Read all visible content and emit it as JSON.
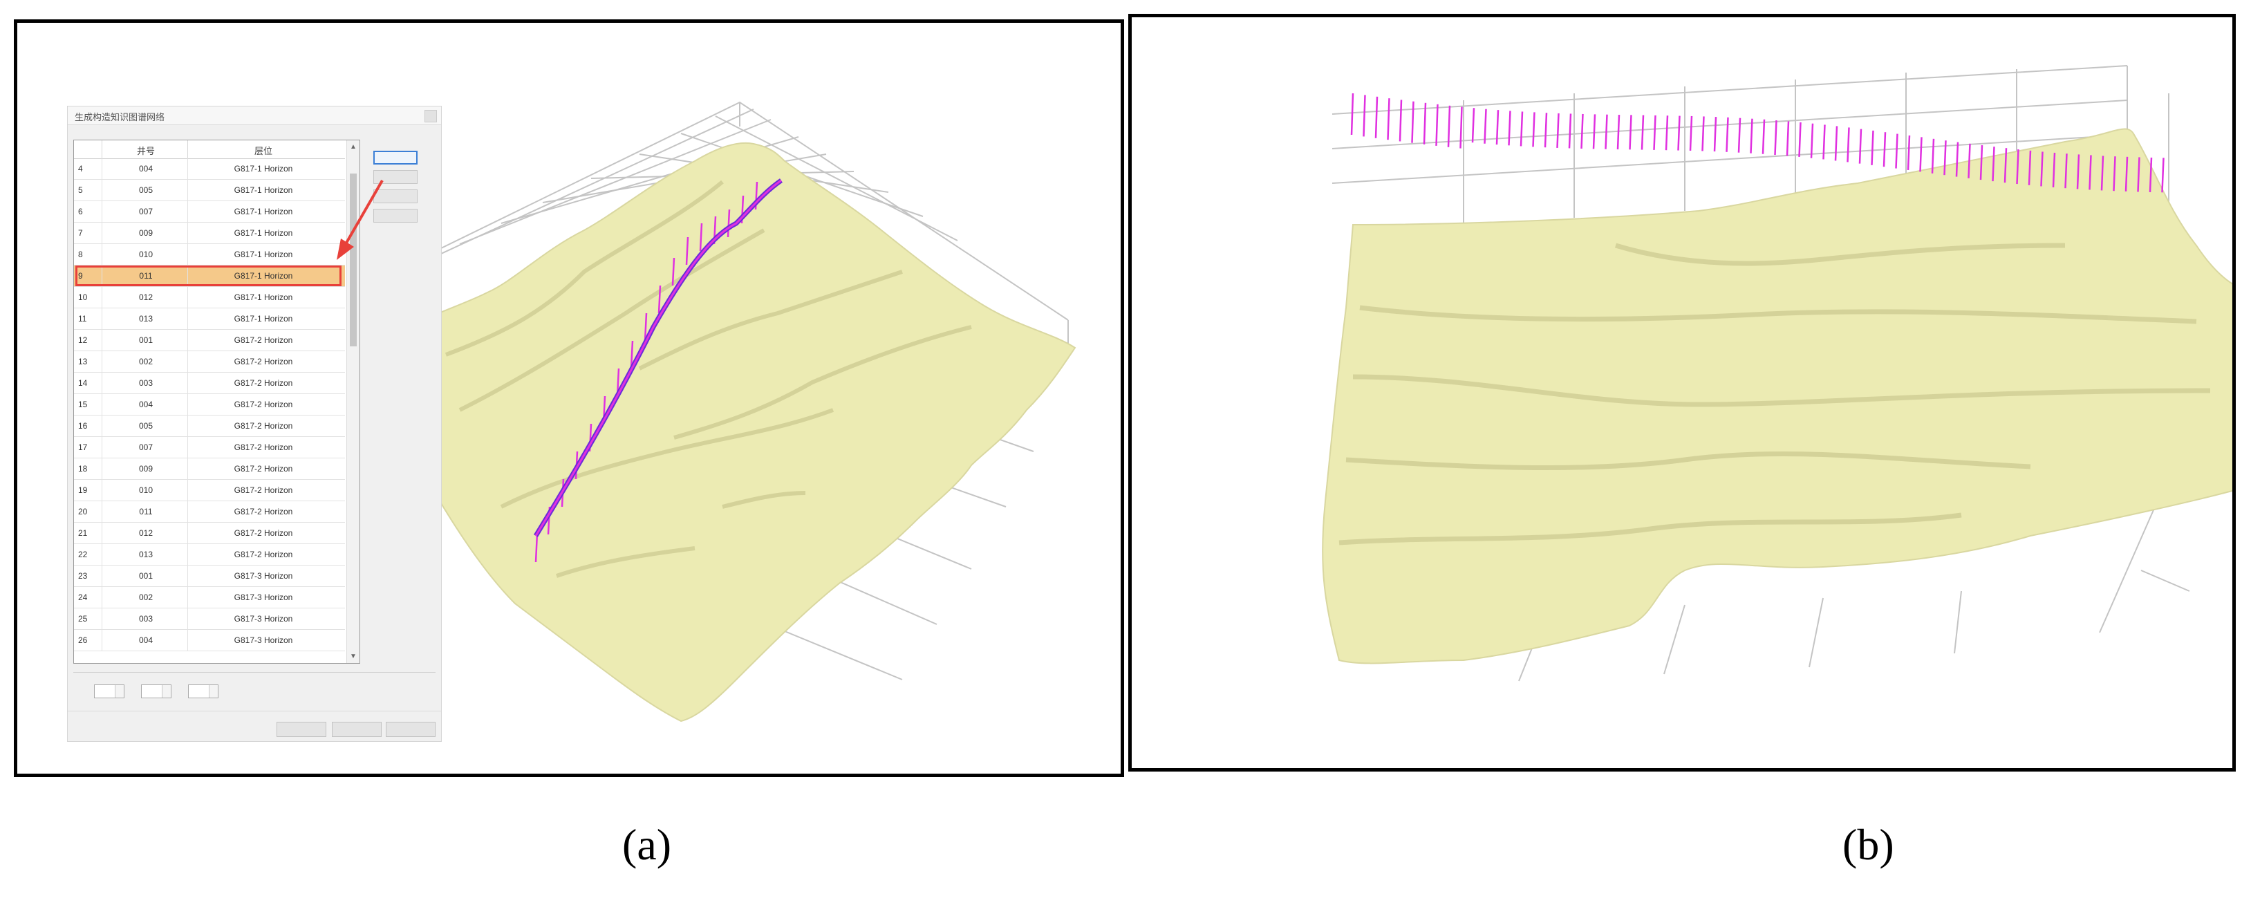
{
  "dialog": {
    "title": "生成构造知识图谱网络",
    "columns": [
      "井号",
      "层位"
    ],
    "rows": [
      {
        "idx": "4",
        "no": "004",
        "name": "G817-1 Horizon"
      },
      {
        "idx": "5",
        "no": "005",
        "name": "G817-1 Horizon"
      },
      {
        "idx": "6",
        "no": "007",
        "name": "G817-1 Horizon"
      },
      {
        "idx": "7",
        "no": "009",
        "name": "G817-1 Horizon"
      },
      {
        "idx": "8",
        "no": "010",
        "name": "G817-1 Horizon"
      },
      {
        "idx": "9",
        "no": "011",
        "name": "G817-1 Horizon"
      },
      {
        "idx": "10",
        "no": "012",
        "name": "G817-1 Horizon"
      },
      {
        "idx": "11",
        "no": "013",
        "name": "G817-1 Horizon"
      },
      {
        "idx": "12",
        "no": "001",
        "name": "G817-2 Horizon"
      },
      {
        "idx": "13",
        "no": "002",
        "name": "G817-2 Horizon"
      },
      {
        "idx": "14",
        "no": "003",
        "name": "G817-2 Horizon"
      },
      {
        "idx": "15",
        "no": "004",
        "name": "G817-2 Horizon"
      },
      {
        "idx": "16",
        "no": "005",
        "name": "G817-2 Horizon"
      },
      {
        "idx": "17",
        "no": "007",
        "name": "G817-2 Horizon"
      },
      {
        "idx": "18",
        "no": "009",
        "name": "G817-2 Horizon"
      },
      {
        "idx": "19",
        "no": "010",
        "name": "G817-2 Horizon"
      },
      {
        "idx": "20",
        "no": "011",
        "name": "G817-2 Horizon"
      },
      {
        "idx": "21",
        "no": "012",
        "name": "G817-2 Horizon"
      },
      {
        "idx": "22",
        "no": "013",
        "name": "G817-2 Horizon"
      },
      {
        "idx": "23",
        "no": "001",
        "name": "G817-3 Horizon"
      },
      {
        "idx": "24",
        "no": "002",
        "name": "G817-3 Horizon"
      },
      {
        "idx": "25",
        "no": "003",
        "name": "G817-3 Horizon"
      },
      {
        "idx": "26",
        "no": "004",
        "name": "G817-3 Horizon"
      }
    ],
    "selected_index": 5
  },
  "captions": {
    "a": "(a)",
    "b": "(b)"
  },
  "colors": {
    "surface": "#ecebb3",
    "surface_shadow": "#c9c78c",
    "well_line": "#e030e0",
    "trace_line": "#6a2cd8",
    "highlight": "#e8403a",
    "selected_row": "#f5c98a",
    "grid": "#bdbdbd"
  }
}
